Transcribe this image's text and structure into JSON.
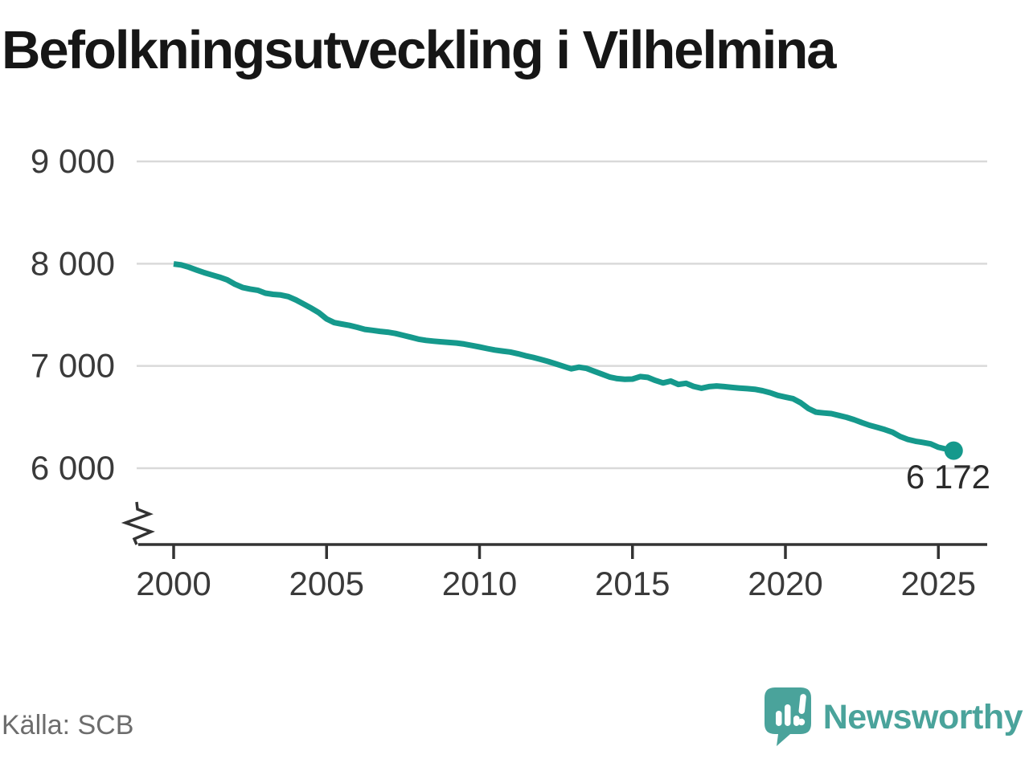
{
  "title": "Befolkningsutveckling i Vilhelmina",
  "source": "Källa: SCB",
  "brand": {
    "name": "Newsworthy",
    "icon": "chart-bars-speech-bubble-icon"
  },
  "colors": {
    "line": "#15998c",
    "end_dot": "#15998c",
    "brand_teal": "#4aa39b",
    "grid": "#d9d9d9",
    "axis": "#333333",
    "tick_text": "#3a3a3a",
    "annotation_text": "#2b2b2b",
    "title_text": "#161616",
    "source_text": "#6d6d6d"
  },
  "chart_data": {
    "type": "line",
    "title": "Befolkningsutveckling i Vilhelmina",
    "xlabel": "",
    "ylabel": "",
    "grid": "horizontal",
    "axis_break": true,
    "xlim": [
      1998.8,
      2026.6
    ],
    "ylim_displayed": [
      6000,
      9000
    ],
    "x_axis": {
      "ticks": [
        {
          "v": 2000,
          "label": "2000"
        },
        {
          "v": 2005,
          "label": "2005"
        },
        {
          "v": 2010,
          "label": "2010"
        },
        {
          "v": 2015,
          "label": "2015"
        },
        {
          "v": 2020,
          "label": "2020"
        },
        {
          "v": 2025,
          "label": "2025"
        }
      ]
    },
    "y_axis": {
      "ticks": [
        {
          "v": 9000,
          "label": "9 000"
        },
        {
          "v": 8000,
          "label": "8 000"
        },
        {
          "v": 7000,
          "label": "7 000"
        },
        {
          "v": 6000,
          "label": "6 000"
        }
      ]
    },
    "annotation": {
      "label": "6 172",
      "x": 2025.5,
      "y": 6172
    },
    "series": [
      {
        "name": "Befolkning",
        "points": [
          [
            2000.0,
            7998
          ],
          [
            2000.25,
            7988
          ],
          [
            2000.5,
            7966
          ],
          [
            2000.75,
            7938
          ],
          [
            2001.0,
            7912
          ],
          [
            2001.25,
            7890
          ],
          [
            2001.5,
            7868
          ],
          [
            2001.75,
            7842
          ],
          [
            2002.0,
            7800
          ],
          [
            2002.25,
            7768
          ],
          [
            2002.5,
            7752
          ],
          [
            2002.75,
            7740
          ],
          [
            2003.0,
            7712
          ],
          [
            2003.25,
            7700
          ],
          [
            2003.5,
            7694
          ],
          [
            2003.75,
            7678
          ],
          [
            2004.0,
            7645
          ],
          [
            2004.25,
            7605
          ],
          [
            2004.5,
            7565
          ],
          [
            2004.75,
            7520
          ],
          [
            2005.0,
            7460
          ],
          [
            2005.25,
            7424
          ],
          [
            2005.5,
            7410
          ],
          [
            2005.75,
            7396
          ],
          [
            2006.0,
            7378
          ],
          [
            2006.25,
            7358
          ],
          [
            2006.5,
            7348
          ],
          [
            2006.75,
            7338
          ],
          [
            2007.0,
            7330
          ],
          [
            2007.25,
            7318
          ],
          [
            2007.5,
            7300
          ],
          [
            2007.75,
            7282
          ],
          [
            2008.0,
            7262
          ],
          [
            2008.25,
            7250
          ],
          [
            2008.5,
            7242
          ],
          [
            2008.75,
            7236
          ],
          [
            2009.0,
            7230
          ],
          [
            2009.25,
            7224
          ],
          [
            2009.5,
            7214
          ],
          [
            2009.75,
            7200
          ],
          [
            2010.0,
            7186
          ],
          [
            2010.25,
            7170
          ],
          [
            2010.5,
            7156
          ],
          [
            2010.75,
            7146
          ],
          [
            2011.0,
            7136
          ],
          [
            2011.25,
            7120
          ],
          [
            2011.5,
            7100
          ],
          [
            2011.75,
            7084
          ],
          [
            2012.0,
            7064
          ],
          [
            2012.25,
            7044
          ],
          [
            2012.5,
            7020
          ],
          [
            2012.75,
            6996
          ],
          [
            2013.0,
            6972
          ],
          [
            2013.25,
            6988
          ],
          [
            2013.5,
            6976
          ],
          [
            2013.75,
            6948
          ],
          [
            2014.0,
            6920
          ],
          [
            2014.25,
            6892
          ],
          [
            2014.5,
            6876
          ],
          [
            2014.75,
            6870
          ],
          [
            2015.0,
            6872
          ],
          [
            2015.25,
            6896
          ],
          [
            2015.5,
            6888
          ],
          [
            2015.75,
            6858
          ],
          [
            2016.0,
            6834
          ],
          [
            2016.25,
            6852
          ],
          [
            2016.5,
            6820
          ],
          [
            2016.75,
            6830
          ],
          [
            2017.0,
            6800
          ],
          [
            2017.25,
            6782
          ],
          [
            2017.5,
            6798
          ],
          [
            2017.75,
            6804
          ],
          [
            2018.0,
            6798
          ],
          [
            2018.25,
            6790
          ],
          [
            2018.5,
            6784
          ],
          [
            2018.75,
            6778
          ],
          [
            2019.0,
            6772
          ],
          [
            2019.25,
            6758
          ],
          [
            2019.5,
            6738
          ],
          [
            2019.75,
            6712
          ],
          [
            2020.0,
            6696
          ],
          [
            2020.25,
            6680
          ],
          [
            2020.5,
            6640
          ],
          [
            2020.75,
            6584
          ],
          [
            2021.0,
            6548
          ],
          [
            2021.25,
            6540
          ],
          [
            2021.5,
            6534
          ],
          [
            2021.75,
            6516
          ],
          [
            2022.0,
            6498
          ],
          [
            2022.25,
            6474
          ],
          [
            2022.5,
            6446
          ],
          [
            2022.75,
            6420
          ],
          [
            2023.0,
            6400
          ],
          [
            2023.25,
            6378
          ],
          [
            2023.5,
            6352
          ],
          [
            2023.75,
            6310
          ],
          [
            2024.0,
            6282
          ],
          [
            2024.25,
            6264
          ],
          [
            2024.5,
            6252
          ],
          [
            2024.75,
            6238
          ],
          [
            2025.0,
            6205
          ],
          [
            2025.25,
            6188
          ],
          [
            2025.5,
            6172
          ]
        ]
      }
    ]
  }
}
